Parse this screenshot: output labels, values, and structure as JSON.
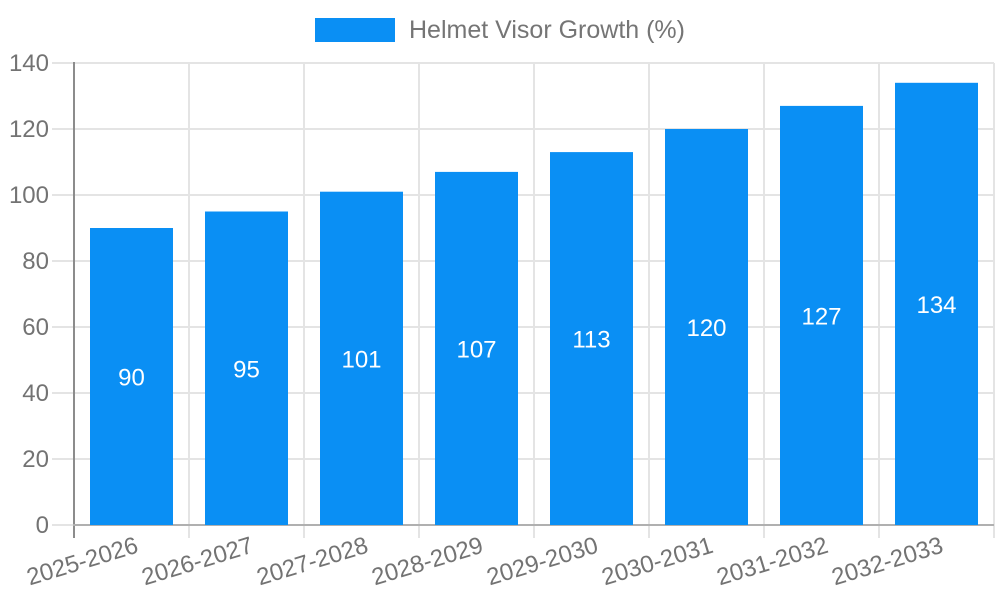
{
  "legend": {
    "position": "top-center"
  },
  "colors": {
    "bar": "#0a8ff4",
    "legend_text": "#757575",
    "axis_tick_label": "#737373",
    "grid_line": "#e4e4e4",
    "y_axis_line": "#8c8c8c",
    "x_baseline": "#b0b0b0",
    "value_label": "#ffffff",
    "background": "#ffffff"
  },
  "chart_data": {
    "type": "bar",
    "title": "",
    "xlabel": "",
    "ylabel": "",
    "categories": [
      "2025-2026",
      "2026-2027",
      "2027-2028",
      "2028-2029",
      "2029-2030",
      "2030-2031",
      "2031-2032",
      "2032-2033"
    ],
    "series": [
      {
        "name": "Helmet Visor Growth (%)",
        "values": [
          90,
          95,
          101,
          107,
          113,
          120,
          127,
          134
        ]
      }
    ],
    "ylim": [
      0,
      140
    ],
    "yticks": [
      0,
      20,
      40,
      60,
      80,
      100,
      120,
      140
    ],
    "grid": true,
    "legend_position": "top-center",
    "value_labels": "inside-center-white",
    "x_label_rotation_deg": -17
  }
}
